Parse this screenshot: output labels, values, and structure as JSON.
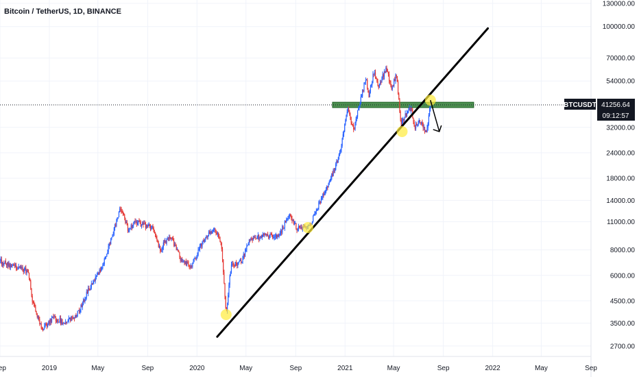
{
  "title": "Bitcoin / TetherUS, 1D, BINANCE",
  "price_label": {
    "symbol": "BTCUSDT",
    "price": "41256.64",
    "countdown": "09:12:57"
  },
  "colors": {
    "up": "#2962ff",
    "down": "#e53935",
    "trendline": "#000000",
    "resistance_band": "#2e7d32",
    "highlight": "#ffeb3b",
    "price_label_bg": "#131722",
    "axis_bg": "#ffffff"
  },
  "chart_data": {
    "type": "candlestick",
    "y_scale": "log",
    "ylim": [
      2400,
      135000
    ],
    "y_ticks": [
      "130000.00",
      "100000.00",
      "70000.00",
      "54000.00",
      "32000.00",
      "24000.00",
      "18000.00",
      "14000.00",
      "11000.00",
      "8000.00",
      "6000.00",
      "4500.00",
      "3500.00",
      "2700.00"
    ],
    "x_ticks": [
      "Sep",
      "2019",
      "May",
      "Sep",
      "2020",
      "May",
      "Sep",
      "2021",
      "May",
      "Sep",
      "2022",
      "May",
      "Sep"
    ],
    "x_tick_dates": [
      "2018-09-01",
      "2019-01-01",
      "2019-05-01",
      "2019-09-01",
      "2020-01-01",
      "2020-05-01",
      "2020-09-01",
      "2021-01-01",
      "2021-05-01",
      "2021-09-01",
      "2022-01-01",
      "2022-05-01",
      "2022-09-01"
    ],
    "x_range": [
      "2018-09-01",
      "2022-09-01"
    ],
    "price_path": [
      [
        "2018-09-01",
        7000
      ],
      [
        "2018-10-15",
        6500
      ],
      [
        "2018-11-10",
        6300
      ],
      [
        "2018-11-20",
        4500
      ],
      [
        "2018-12-15",
        3250
      ],
      [
        "2019-01-10",
        3700
      ],
      [
        "2019-02-10",
        3500
      ],
      [
        "2019-03-15",
        3950
      ],
      [
        "2019-04-05",
        5000
      ],
      [
        "2019-05-10",
        6500
      ],
      [
        "2019-05-30",
        8500
      ],
      [
        "2019-06-26",
        13000
      ],
      [
        "2019-07-15",
        10000
      ],
      [
        "2019-08-01",
        11000
      ],
      [
        "2019-09-15",
        10200
      ],
      [
        "2019-10-01",
        8000
      ],
      [
        "2019-10-27",
        9400
      ],
      [
        "2019-11-25",
        7000
      ],
      [
        "2019-12-18",
        6700
      ],
      [
        "2020-01-15",
        8800
      ],
      [
        "2020-02-13",
        10300
      ],
      [
        "2020-03-01",
        8600
      ],
      [
        "2020-03-13",
        3850
      ],
      [
        "2020-03-25",
        6700
      ],
      [
        "2020-04-20",
        7000
      ],
      [
        "2020-05-10",
        9000
      ],
      [
        "2020-06-15",
        9400
      ],
      [
        "2020-07-20",
        9300
      ],
      [
        "2020-08-15",
        11800
      ],
      [
        "2020-09-05",
        10200
      ],
      [
        "2020-10-08",
        10600
      ],
      [
        "2020-10-25",
        13000
      ],
      [
        "2020-11-15",
        16000
      ],
      [
        "2020-12-01",
        18800
      ],
      [
        "2020-12-20",
        24000
      ],
      [
        "2021-01-08",
        40000
      ],
      [
        "2021-01-22",
        31000
      ],
      [
        "2021-02-10",
        45000
      ],
      [
        "2021-02-21",
        56000
      ],
      [
        "2021-03-01",
        46000
      ],
      [
        "2021-03-13",
        60000
      ],
      [
        "2021-03-25",
        51000
      ],
      [
        "2021-04-14",
        63500
      ],
      [
        "2021-04-25",
        49000
      ],
      [
        "2021-05-08",
        58000
      ],
      [
        "2021-05-19",
        33000
      ],
      [
        "2021-05-31",
        37000
      ],
      [
        "2021-06-14",
        40000
      ],
      [
        "2021-06-22",
        31500
      ],
      [
        "2021-07-05",
        34500
      ],
      [
        "2021-07-20",
        29800
      ],
      [
        "2021-07-31",
        41256.64
      ]
    ],
    "annotations": {
      "trendline": [
        [
          "2020-02-20",
          3000
        ],
        [
          "2021-12-20",
          98000
        ]
      ],
      "resistance_zone": {
        "from": "2020-12-01",
        "to": "2021-11-15",
        "low": 40000,
        "high": 42500
      },
      "last_price_line": 41256.64,
      "highlights": [
        [
          "2020-03-13",
          3850
        ],
        [
          "2020-10-01",
          10300
        ],
        [
          "2021-05-22",
          30500
        ],
        [
          "2021-07-31",
          43500
        ]
      ],
      "projection_arrow": [
        [
          "2021-07-31",
          43500
        ],
        [
          "2021-08-22",
          30500
        ]
      ]
    }
  }
}
